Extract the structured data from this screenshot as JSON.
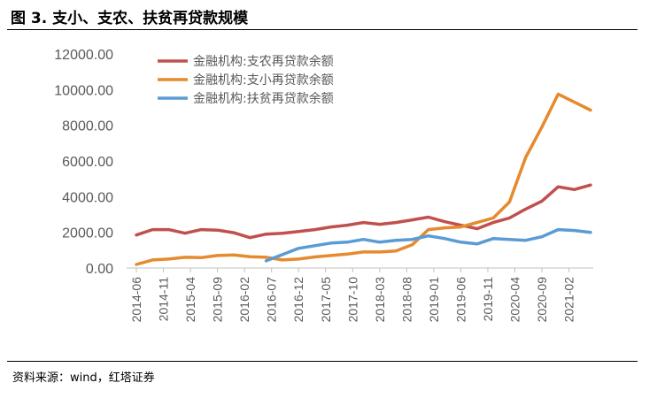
{
  "title": "图 3. 支小、支农、扶贫再贷款规模",
  "source": "资料来源：wind，红塔证券",
  "colors": {
    "agri": "#C0504D",
    "small": "#E68A2E",
    "poverty": "#5B9BD5",
    "axis": "#595959"
  },
  "chart_data": {
    "type": "line",
    "title": "",
    "xlabel": "",
    "ylabel": "",
    "ylim": [
      0,
      12000
    ],
    "yticks": [
      "0.00",
      "2000.00",
      "4000.00",
      "6000.00",
      "8000.00",
      "10000.00",
      "12000.00"
    ],
    "xtick_labels": [
      "2014-06",
      "2014-11",
      "2015-04",
      "2015-09",
      "2016-02",
      "2016-07",
      "2016-12",
      "2017-05",
      "2017-10",
      "2018-03",
      "2018-08",
      "2019-01",
      "2019-06",
      "2019-11",
      "2020-04",
      "2020-09",
      "2021-02"
    ],
    "legend_position": "top-left",
    "grid": false,
    "series": [
      {
        "name": "金融机构:支农再贷款余额",
        "color_key": "agri",
        "points": [
          [
            "2014-06",
            1850
          ],
          [
            "2014-09",
            2150
          ],
          [
            "2014-12",
            2150
          ],
          [
            "2015-03",
            1950
          ],
          [
            "2015-06",
            2150
          ],
          [
            "2015-09",
            2120
          ],
          [
            "2015-12",
            1980
          ],
          [
            "2016-03",
            1700
          ],
          [
            "2016-06",
            1900
          ],
          [
            "2016-09",
            1950
          ],
          [
            "2016-12",
            2050
          ],
          [
            "2017-03",
            2150
          ],
          [
            "2017-06",
            2300
          ],
          [
            "2017-09",
            2400
          ],
          [
            "2017-12",
            2550
          ],
          [
            "2018-03",
            2450
          ],
          [
            "2018-06",
            2550
          ],
          [
            "2018-09",
            2700
          ],
          [
            "2018-12",
            2850
          ],
          [
            "2019-03",
            2600
          ],
          [
            "2019-06",
            2400
          ],
          [
            "2019-09",
            2200
          ],
          [
            "2019-12",
            2550
          ],
          [
            "2020-03",
            2800
          ],
          [
            "2020-06",
            3300
          ],
          [
            "2020-09",
            3750
          ],
          [
            "2020-12",
            4550
          ],
          [
            "2021-03",
            4400
          ],
          [
            "2021-06",
            4650
          ]
        ]
      },
      {
        "name": "金融机构:支小再贷款余额",
        "color_key": "small",
        "points": [
          [
            "2014-06",
            200
          ],
          [
            "2014-09",
            450
          ],
          [
            "2014-12",
            500
          ],
          [
            "2015-03",
            600
          ],
          [
            "2015-06",
            580
          ],
          [
            "2015-09",
            700
          ],
          [
            "2015-12",
            730
          ],
          [
            "2016-03",
            630
          ],
          [
            "2016-06",
            600
          ],
          [
            "2016-09",
            450
          ],
          [
            "2016-12",
            500
          ],
          [
            "2017-03",
            620
          ],
          [
            "2017-06",
            700
          ],
          [
            "2017-09",
            780
          ],
          [
            "2017-12",
            900
          ],
          [
            "2018-03",
            900
          ],
          [
            "2018-06",
            950
          ],
          [
            "2018-09",
            1300
          ],
          [
            "2018-12",
            2150
          ],
          [
            "2019-03",
            2250
          ],
          [
            "2019-06",
            2300
          ],
          [
            "2019-09",
            2550
          ],
          [
            "2019-12",
            2800
          ],
          [
            "2020-03",
            3700
          ],
          [
            "2020-06",
            6200
          ],
          [
            "2020-09",
            7900
          ],
          [
            "2020-12",
            9750
          ],
          [
            "2021-03",
            9300
          ],
          [
            "2021-06",
            8850
          ]
        ]
      },
      {
        "name": "金融机构:扶贫再贷款余额",
        "color_key": "poverty",
        "points": [
          [
            "2016-06",
            400
          ],
          [
            "2016-09",
            750
          ],
          [
            "2016-12",
            1100
          ],
          [
            "2017-03",
            1250
          ],
          [
            "2017-06",
            1400
          ],
          [
            "2017-09",
            1450
          ],
          [
            "2017-12",
            1600
          ],
          [
            "2018-03",
            1450
          ],
          [
            "2018-06",
            1550
          ],
          [
            "2018-09",
            1600
          ],
          [
            "2018-12",
            1800
          ],
          [
            "2019-03",
            1650
          ],
          [
            "2019-06",
            1450
          ],
          [
            "2019-09",
            1350
          ],
          [
            "2019-12",
            1650
          ],
          [
            "2020-03",
            1600
          ],
          [
            "2020-06",
            1550
          ],
          [
            "2020-09",
            1750
          ],
          [
            "2020-12",
            2150
          ],
          [
            "2021-03",
            2100
          ],
          [
            "2021-06",
            2000
          ]
        ]
      }
    ]
  }
}
